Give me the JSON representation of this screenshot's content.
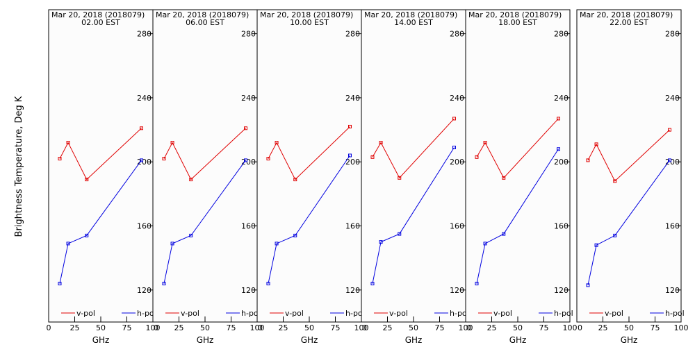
{
  "ylabel": "Brightness Temperature, Deg K",
  "xlabel": "GHz",
  "colors": {
    "background": "#ffffff",
    "panel": "#fcfcfc",
    "axis": "#000000",
    "v_pol": "#e00000",
    "h_pol": "#0000e0"
  },
  "chart_data": [
    {
      "type": "line",
      "title": "Mar 20, 2018 (2018079)",
      "subtitle": "02.00 EST",
      "xlabel": "GHz",
      "ylabel": "Brightness Temperature, Deg K",
      "xlim": [
        0,
        100
      ],
      "ylim": [
        100,
        295
      ],
      "x_ticks": [
        "0",
        "25",
        "50",
        "75",
        "100"
      ],
      "y_ticks": [
        120,
        160,
        200,
        240,
        280
      ],
      "legend_position": "bottom",
      "grid": false,
      "x": [
        10.65,
        18.7,
        36.5,
        89.0
      ],
      "series": [
        {
          "name": "v-pol",
          "color": "#e00000",
          "values": [
            202,
            212,
            189,
            221
          ]
        },
        {
          "name": "h-pol",
          "color": "#0000e0",
          "values": [
            124,
            149,
            154,
            201
          ]
        }
      ]
    },
    {
      "type": "line",
      "title": "Mar 20, 2018 (2018079)",
      "subtitle": "06.00 EST",
      "xlabel": "GHz",
      "ylabel": "Brightness Temperature, Deg K",
      "xlim": [
        0,
        100
      ],
      "ylim": [
        100,
        295
      ],
      "x_ticks": [
        "0",
        "25",
        "50",
        "75",
        "100"
      ],
      "y_ticks": [
        120,
        160,
        200,
        240,
        280
      ],
      "legend_position": "bottom",
      "grid": false,
      "x": [
        10.65,
        18.7,
        36.5,
        89.0
      ],
      "series": [
        {
          "name": "v-pol",
          "color": "#e00000",
          "values": [
            202,
            212,
            189,
            221
          ]
        },
        {
          "name": "h-pol",
          "color": "#0000e0",
          "values": [
            124,
            149,
            154,
            201
          ]
        }
      ]
    },
    {
      "type": "line",
      "title": "Mar 20, 2018 (2018079)",
      "subtitle": "10.00 EST",
      "xlabel": "GHz",
      "ylabel": "Brightness Temperature, Deg K",
      "xlim": [
        0,
        100
      ],
      "ylim": [
        100,
        295
      ],
      "x_ticks": [
        "0",
        "25",
        "50",
        "75",
        "100"
      ],
      "y_ticks": [
        120,
        160,
        200,
        240,
        280
      ],
      "legend_position": "bottom",
      "grid": false,
      "x": [
        10.65,
        18.7,
        36.5,
        89.0
      ],
      "series": [
        {
          "name": "v-pol",
          "color": "#e00000",
          "values": [
            202,
            212,
            189,
            222
          ]
        },
        {
          "name": "h-pol",
          "color": "#0000e0",
          "values": [
            124,
            149,
            154,
            204
          ]
        }
      ]
    },
    {
      "type": "line",
      "title": "Mar 20, 2018 (2018079)",
      "subtitle": "14.00 EST",
      "xlabel": "GHz",
      "ylabel": "Brightness Temperature, Deg K",
      "xlim": [
        0,
        100
      ],
      "ylim": [
        100,
        295
      ],
      "x_ticks": [
        "0",
        "25",
        "50",
        "75",
        "100"
      ],
      "y_ticks": [
        120,
        160,
        200,
        240,
        280
      ],
      "legend_position": "bottom",
      "grid": false,
      "x": [
        10.65,
        18.7,
        36.5,
        89.0
      ],
      "series": [
        {
          "name": "v-pol",
          "color": "#e00000",
          "values": [
            203,
            212,
            190,
            227
          ]
        },
        {
          "name": "h-pol",
          "color": "#0000e0",
          "values": [
            124,
            150,
            155,
            209
          ]
        }
      ]
    },
    {
      "type": "line",
      "title": "Mar 20, 2018 (2018079)",
      "subtitle": "18.00 EST",
      "xlabel": "GHz",
      "ylabel": "Brightness Temperature, Deg K",
      "xlim": [
        0,
        100
      ],
      "ylim": [
        100,
        295
      ],
      "x_ticks": [
        "0",
        "25",
        "50",
        "75",
        "100"
      ],
      "y_ticks": [
        120,
        160,
        200,
        240,
        280
      ],
      "legend_position": "bottom",
      "grid": false,
      "x": [
        10.65,
        18.7,
        36.5,
        89.0
      ],
      "series": [
        {
          "name": "v-pol",
          "color": "#e00000",
          "values": [
            203,
            212,
            190,
            227
          ]
        },
        {
          "name": "h-pol",
          "color": "#0000e0",
          "values": [
            124,
            149,
            155,
            208
          ]
        }
      ]
    },
    {
      "type": "line",
      "title": "Mar 20, 2018 (2018079)",
      "subtitle": "22.00 EST",
      "xlabel": "GHz",
      "ylabel": "Brightness Temperature, Deg K",
      "xlim": [
        0,
        100
      ],
      "ylim": [
        100,
        295
      ],
      "x_ticks": [
        "0",
        "25",
        "50",
        "75",
        "100"
      ],
      "y_ticks": [
        120,
        160,
        200,
        240,
        280
      ],
      "legend_position": "bottom",
      "grid": false,
      "x": [
        10.65,
        18.7,
        36.5,
        89.0
      ],
      "series": [
        {
          "name": "v-pol",
          "color": "#e00000",
          "values": [
            201,
            211,
            188,
            220
          ]
        },
        {
          "name": "h-pol",
          "color": "#0000e0",
          "values": [
            123,
            148,
            154,
            201
          ]
        }
      ]
    }
  ]
}
